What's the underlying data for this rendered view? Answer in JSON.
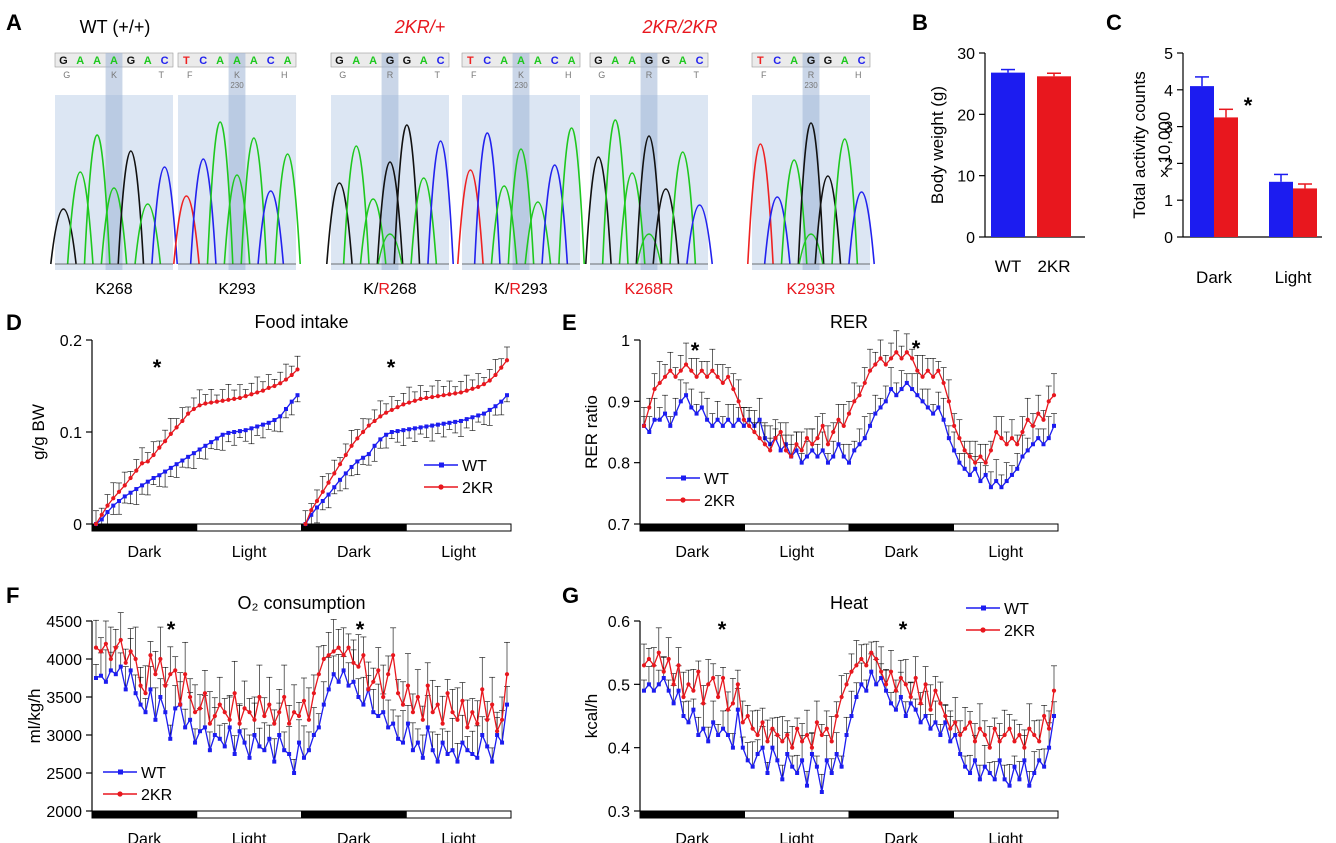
{
  "colors": {
    "wt": "#1c1cf0",
    "kr": "#e8171e",
    "black": "#000000",
    "seqBg": "#dce6f3",
    "highlight": "#9fb4d6"
  },
  "panel_letters": [
    "A",
    "B",
    "C",
    "D",
    "E",
    "F",
    "G"
  ],
  "panelA": {
    "titles": [
      {
        "text": "WT (+/+)",
        "red": false
      },
      {
        "text": "2KR/+",
        "red": true
      },
      {
        "text": "2KR/2KR",
        "red": true
      }
    ],
    "traces": [
      {
        "seq": [
          "G",
          "A",
          "A",
          "A",
          "G",
          "A",
          "C"
        ],
        "aa": [
          "G",
          "",
          "K",
          "",
          "T"
        ],
        "label": "K268",
        "label_red": false
      },
      {
        "seq": [
          "T",
          "C",
          "A",
          "A",
          "A",
          "C",
          "A"
        ],
        "aa": [
          "F",
          "",
          "K",
          "",
          "H"
        ],
        "pos": "230",
        "label": "K293",
        "label_red": false
      },
      {
        "seq": [
          "G",
          "A",
          "A",
          "G",
          "G",
          "A",
          "C"
        ],
        "aa": [
          "G",
          "",
          "R",
          "",
          "T"
        ],
        "label_pre": "K/",
        "label_mut": "R",
        "label_post": "268"
      },
      {
        "seq": [
          "T",
          "C",
          "A",
          "A",
          "A",
          "C",
          "A"
        ],
        "aa": [
          "F",
          "",
          "K",
          "",
          "H"
        ],
        "pos": "230",
        "label_pre": "K/",
        "label_mut": "R",
        "label_post": "293"
      },
      {
        "seq": [
          "G",
          "A",
          "A",
          "G",
          "G",
          "A",
          "C"
        ],
        "aa": [
          "G",
          "",
          "R",
          "",
          "T"
        ],
        "label": "K268R",
        "label_red": true
      },
      {
        "seq": [
          "T",
          "C",
          "A",
          "G",
          "G",
          "A",
          "C"
        ],
        "aa": [
          "F",
          "",
          "R",
          "",
          "H"
        ],
        "pos": "230",
        "label": "K293R",
        "label_red": true
      }
    ]
  },
  "chart_data": [
    {
      "panel": "B",
      "type": "bar",
      "categories": [
        "WT",
        "2KR"
      ],
      "values": [
        26.8,
        26.2
      ],
      "errors": [
        0.5,
        0.5
      ],
      "ylabel": "Body weight (g)",
      "ylim": [
        0,
        30
      ],
      "yticks": [
        0,
        10,
        20,
        30
      ]
    },
    {
      "panel": "C",
      "type": "bar",
      "categories": [
        "Dark",
        "Light"
      ],
      "series": [
        {
          "name": "WT",
          "values": [
            4.1,
            1.5
          ],
          "errors": [
            0.25,
            0.2
          ]
        },
        {
          "name": "2KR",
          "values": [
            3.25,
            1.32
          ],
          "errors": [
            0.22,
            0.12
          ]
        }
      ],
      "ylabel_lines": [
        "Total activity counts",
        "× 10,000"
      ],
      "ylim": [
        0,
        5
      ],
      "yticks": [
        0,
        1,
        2,
        3,
        4,
        5
      ],
      "annotation": "*"
    },
    {
      "panel": "D",
      "type": "line",
      "title": "Food intake",
      "ylabel": "g/g BW",
      "ylim": [
        0,
        0.2
      ],
      "yticks": [
        "0",
        "0.1",
        "0.2"
      ],
      "xlabels": [
        "Dark",
        "Light",
        "Dark",
        "Light"
      ],
      "legend": [
        "WT",
        "2KR"
      ],
      "annotation": "*",
      "note": "cumulative intake, two 24 h cycles restarting from 0; ~35 points per cycle",
      "series": [
        {
          "name": "WT",
          "segments": [
            [
              0,
              0.005,
              0.013,
              0.02,
              0.025,
              0.03,
              0.034,
              0.038,
              0.042,
              0.046,
              0.05,
              0.053,
              0.057,
              0.061,
              0.065,
              0.069,
              0.073,
              0.077,
              0.081,
              0.085,
              0.089,
              0.093,
              0.097,
              0.099,
              0.1,
              0.101,
              0.102,
              0.104,
              0.106,
              0.108,
              0.11,
              0.113,
              0.117,
              0.125,
              0.133,
              0.14
            ],
            [
              0,
              0.01,
              0.018,
              0.025,
              0.032,
              0.04,
              0.048,
              0.055,
              0.062,
              0.068,
              0.072,
              0.076,
              0.085,
              0.092,
              0.097,
              0.1,
              0.101,
              0.102,
              0.103,
              0.104,
              0.105,
              0.106,
              0.107,
              0.108,
              0.109,
              0.11,
              0.111,
              0.112,
              0.114,
              0.116,
              0.118,
              0.12,
              0.124,
              0.128,
              0.133,
              0.14
            ]
          ]
        },
        {
          "name": "2KR",
          "segments": [
            [
              0,
              0.01,
              0.02,
              0.028,
              0.035,
              0.042,
              0.05,
              0.058,
              0.066,
              0.068,
              0.075,
              0.083,
              0.09,
              0.098,
              0.105,
              0.112,
              0.12,
              0.125,
              0.129,
              0.131,
              0.132,
              0.133,
              0.134,
              0.135,
              0.136,
              0.137,
              0.139,
              0.141,
              0.143,
              0.145,
              0.148,
              0.15,
              0.153,
              0.157,
              0.162,
              0.168
            ],
            [
              0,
              0.015,
              0.025,
              0.035,
              0.045,
              0.055,
              0.065,
              0.075,
              0.085,
              0.093,
              0.1,
              0.107,
              0.112,
              0.117,
              0.121,
              0.124,
              0.127,
              0.13,
              0.132,
              0.134,
              0.136,
              0.137,
              0.138,
              0.139,
              0.14,
              0.141,
              0.142,
              0.143,
              0.145,
              0.147,
              0.149,
              0.152,
              0.156,
              0.162,
              0.17,
              0.178
            ]
          ]
        }
      ]
    },
    {
      "panel": "E",
      "type": "line",
      "title": "RER",
      "ylabel": "RER ratio",
      "ylim": [
        0.7,
        1.0
      ],
      "yticks": [
        "0.7",
        "0.8",
        "0.9",
        "1"
      ],
      "xlabels": [
        "Dark",
        "Light",
        "Dark",
        "Light"
      ],
      "legend": [
        "WT",
        "2KR"
      ],
      "annotations": [
        "*",
        "*"
      ],
      "series": [
        {
          "name": "WT",
          "values": [
            0.86,
            0.85,
            0.87,
            0.87,
            0.88,
            0.86,
            0.88,
            0.9,
            0.91,
            0.89,
            0.88,
            0.89,
            0.87,
            0.86,
            0.87,
            0.86,
            0.87,
            0.86,
            0.87,
            0.86,
            0.87,
            0.86,
            0.87,
            0.84,
            0.83,
            0.84,
            0.82,
            0.83,
            0.81,
            0.82,
            0.8,
            0.81,
            0.82,
            0.81,
            0.82,
            0.8,
            0.81,
            0.83,
            0.81,
            0.8,
            0.82,
            0.83,
            0.84,
            0.86,
            0.88,
            0.89,
            0.9,
            0.92,
            0.91,
            0.92,
            0.93,
            0.92,
            0.91,
            0.9,
            0.89,
            0.88,
            0.89,
            0.87,
            0.84,
            0.82,
            0.8,
            0.79,
            0.78,
            0.79,
            0.77,
            0.78,
            0.76,
            0.77,
            0.76,
            0.77,
            0.78,
            0.79,
            0.81,
            0.82,
            0.83,
            0.84,
            0.83,
            0.84,
            0.86
          ]
        },
        {
          "name": "2KR",
          "values": [
            0.86,
            0.89,
            0.92,
            0.93,
            0.94,
            0.95,
            0.94,
            0.95,
            0.96,
            0.95,
            0.94,
            0.95,
            0.94,
            0.95,
            0.94,
            0.93,
            0.94,
            0.92,
            0.9,
            0.87,
            0.86,
            0.85,
            0.84,
            0.83,
            0.82,
            0.84,
            0.85,
            0.82,
            0.81,
            0.83,
            0.82,
            0.84,
            0.83,
            0.84,
            0.86,
            0.83,
            0.85,
            0.87,
            0.86,
            0.88,
            0.9,
            0.91,
            0.93,
            0.95,
            0.96,
            0.97,
            0.96,
            0.97,
            0.98,
            0.97,
            0.98,
            0.97,
            0.95,
            0.94,
            0.95,
            0.94,
            0.95,
            0.93,
            0.9,
            0.86,
            0.84,
            0.82,
            0.81,
            0.8,
            0.81,
            0.8,
            0.82,
            0.85,
            0.84,
            0.83,
            0.84,
            0.83,
            0.85,
            0.87,
            0.86,
            0.88,
            0.87,
            0.9,
            0.91
          ]
        }
      ]
    },
    {
      "panel": "F",
      "type": "line",
      "title": "O₂ consumption",
      "ylabel": "ml/kg/h",
      "ylim": [
        2000,
        4500
      ],
      "yticks": [
        "2000",
        "2500",
        "3000",
        "3500",
        "4000",
        "4500"
      ],
      "xlabels": [
        "Dark",
        "Light",
        "Dark",
        "Light"
      ],
      "legend": [
        "WT",
        "2KR"
      ],
      "annotations": [
        "*",
        "*"
      ],
      "series": [
        {
          "name": "WT",
          "values": [
            3750,
            3780,
            3700,
            3850,
            3800,
            3900,
            3600,
            3850,
            3550,
            3400,
            3300,
            3600,
            3200,
            3500,
            3300,
            2950,
            3350,
            3400,
            3100,
            3200,
            2900,
            3050,
            3100,
            2800,
            3000,
            2950,
            2850,
            3100,
            2750,
            3050,
            2900,
            2700,
            3000,
            2850,
            2800,
            2950,
            2650,
            3000,
            2800,
            2750,
            2500,
            2900,
            2700,
            2800,
            3000,
            3100,
            3400,
            3600,
            3800,
            3700,
            3850,
            3650,
            3700,
            3500,
            3400,
            3600,
            3300,
            3250,
            3300,
            3100,
            3150,
            2950,
            2900,
            3150,
            2800,
            2900,
            2700,
            3100,
            2800,
            2650,
            2900,
            2750,
            2800,
            2650,
            2900,
            2800,
            2750,
            2700,
            3000,
            2850,
            2650,
            3000,
            2900,
            3400
          ]
        },
        {
          "name": "2KR",
          "values": [
            4150,
            4100,
            4200,
            4000,
            4150,
            4250,
            3950,
            4100,
            4000,
            3650,
            3550,
            4050,
            3800,
            4000,
            3650,
            3800,
            3850,
            3400,
            3800,
            3500,
            3300,
            3350,
            3550,
            3150,
            3250,
            3400,
            3300,
            3200,
            3550,
            3150,
            3350,
            3300,
            3200,
            3500,
            3250,
            3400,
            3150,
            3300,
            3500,
            3150,
            3300,
            3250,
            3450,
            3200,
            3550,
            3800,
            4000,
            4050,
            4100,
            4150,
            4050,
            4150,
            3950,
            3900,
            4050,
            3600,
            3700,
            3850,
            3500,
            3800,
            4050,
            3550,
            3400,
            3650,
            3300,
            3500,
            3200,
            3650,
            3300,
            3400,
            3150,
            3550,
            3300,
            3200,
            3450,
            3100,
            3300,
            3150,
            3600,
            3200,
            3400,
            3050,
            3200,
            3800
          ]
        }
      ]
    },
    {
      "panel": "G",
      "type": "line",
      "title": "Heat",
      "ylabel": "kcal/h",
      "ylim": [
        0.3,
        0.6
      ],
      "yticks": [
        "0.3",
        "0.4",
        "0.5",
        "0.6"
      ],
      "xlabels": [
        "Dark",
        "Light",
        "Dark",
        "Light"
      ],
      "legend": [
        "WT",
        "2KR"
      ],
      "annotations": [
        "*",
        "*"
      ],
      "series": [
        {
          "name": "WT",
          "values": [
            0.49,
            0.5,
            0.49,
            0.5,
            0.51,
            0.49,
            0.47,
            0.49,
            0.45,
            0.44,
            0.46,
            0.42,
            0.43,
            0.41,
            0.44,
            0.42,
            0.43,
            0.42,
            0.4,
            0.46,
            0.4,
            0.38,
            0.37,
            0.39,
            0.4,
            0.36,
            0.4,
            0.38,
            0.35,
            0.39,
            0.37,
            0.36,
            0.38,
            0.34,
            0.39,
            0.37,
            0.33,
            0.38,
            0.36,
            0.39,
            0.37,
            0.42,
            0.45,
            0.48,
            0.5,
            0.49,
            0.52,
            0.5,
            0.51,
            0.49,
            0.47,
            0.46,
            0.48,
            0.45,
            0.47,
            0.46,
            0.44,
            0.45,
            0.43,
            0.44,
            0.42,
            0.44,
            0.41,
            0.42,
            0.39,
            0.37,
            0.36,
            0.38,
            0.35,
            0.37,
            0.36,
            0.35,
            0.38,
            0.35,
            0.34,
            0.37,
            0.35,
            0.38,
            0.34,
            0.36,
            0.38,
            0.37,
            0.4,
            0.45
          ]
        },
        {
          "name": "2KR",
          "values": [
            0.53,
            0.54,
            0.53,
            0.55,
            0.52,
            0.54,
            0.5,
            0.53,
            0.48,
            0.5,
            0.49,
            0.52,
            0.47,
            0.5,
            0.51,
            0.48,
            0.51,
            0.46,
            0.47,
            0.5,
            0.44,
            0.45,
            0.43,
            0.42,
            0.44,
            0.41,
            0.43,
            0.42,
            0.41,
            0.42,
            0.4,
            0.43,
            0.41,
            0.42,
            0.4,
            0.44,
            0.42,
            0.43,
            0.41,
            0.45,
            0.48,
            0.5,
            0.52,
            0.53,
            0.54,
            0.53,
            0.55,
            0.54,
            0.52,
            0.5,
            0.52,
            0.49,
            0.51,
            0.5,
            0.48,
            0.51,
            0.47,
            0.5,
            0.46,
            0.49,
            0.47,
            0.45,
            0.43,
            0.44,
            0.42,
            0.43,
            0.44,
            0.41,
            0.43,
            0.42,
            0.4,
            0.43,
            0.41,
            0.42,
            0.43,
            0.41,
            0.42,
            0.4,
            0.43,
            0.42,
            0.41,
            0.45,
            0.43,
            0.49
          ]
        }
      ]
    }
  ]
}
